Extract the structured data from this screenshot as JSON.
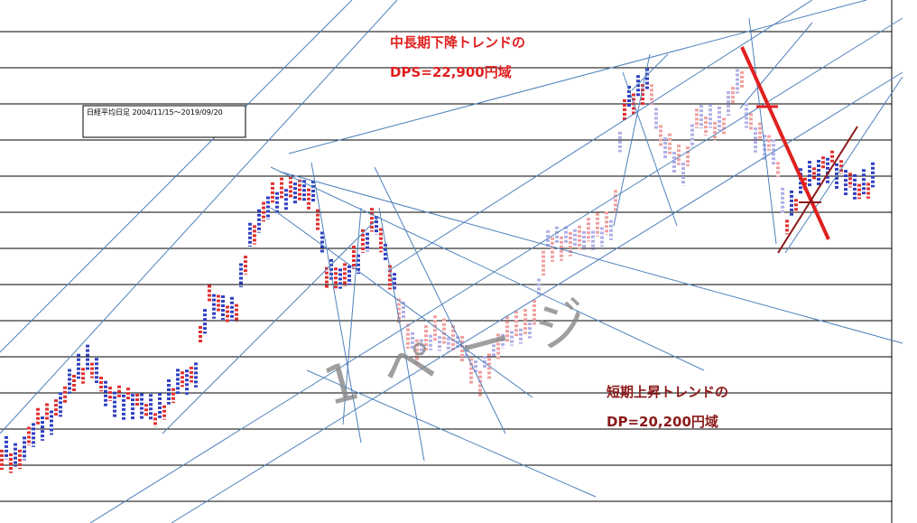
{
  "annotations": {
    "long_trend_title": "中長期下降トレンドの",
    "long_trend_value": "DPS=22,900円域",
    "short_trend_title": "短期上昇トレンドの",
    "short_trend_value": "DP=20,200円域",
    "legend_box": "日経平均日足  2004/11/15～2019/09/20",
    "watermark": "1ページ"
  }
}
